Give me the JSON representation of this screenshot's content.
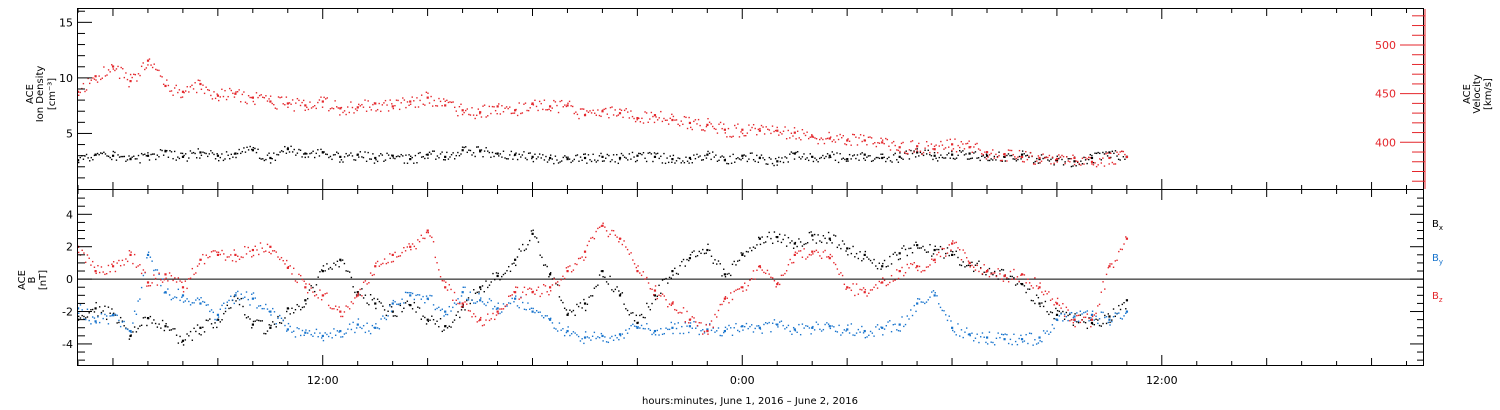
{
  "chart_data": [
    {
      "panel": "density-velocity",
      "type": "scatter",
      "x_range_hours": [
        5.0,
        43.5
      ],
      "ylim": [
        0,
        16.2
      ],
      "ylabel": [
        "ACE",
        "Ion Density",
        "[cm⁻³]"
      ],
      "yticks": [
        5,
        10,
        15
      ],
      "right_ylim": [
        352,
        537
      ],
      "right_ylabel": [
        "ACE",
        "Velocity",
        "[km/s]"
      ],
      "right_yticks": [
        400,
        450,
        500
      ],
      "right_axis_color": "#e4262b",
      "series": [
        {
          "axis": "left",
          "color": "#000000",
          "x": [
            5.0,
            5.5,
            6.0,
            6.5,
            7.0,
            7.5,
            8.0,
            8.5,
            9.0,
            9.5,
            10.0,
            10.5,
            11.0,
            11.5,
            12.0,
            12.5,
            13.0,
            13.5,
            14.0,
            14.5,
            15.0,
            15.5,
            16.0,
            16.5,
            17.0,
            17.5,
            18.0,
            18.5,
            19.0,
            19.5,
            20.0,
            20.5,
            21.0,
            21.5,
            22.0,
            22.5,
            23.0,
            23.5,
            24.0,
            24.5,
            25.0,
            25.5,
            26.0,
            26.5,
            27.0,
            27.5,
            28.0,
            28.5,
            29.0,
            29.5,
            30.0,
            30.5,
            31.0,
            31.5,
            32.0,
            32.5,
            33.0,
            33.5,
            34.0,
            34.5,
            35.0
          ],
          "y": [
            2.6,
            3.1,
            3.0,
            2.7,
            3.0,
            3.4,
            2.9,
            3.3,
            3.0,
            3.2,
            3.5,
            2.8,
            3.6,
            3.2,
            3.3,
            2.9,
            3.1,
            2.8,
            3.0,
            2.7,
            3.1,
            2.9,
            3.5,
            3.4,
            3.2,
            3.1,
            2.9,
            2.8,
            2.7,
            2.8,
            2.9,
            2.8,
            3.0,
            2.9,
            2.7,
            2.8,
            3.1,
            2.6,
            3.0,
            2.8,
            2.5,
            3.2,
            2.9,
            3.0,
            2.7,
            3.1,
            2.8,
            2.9,
            3.3,
            3.0,
            3.1,
            3.2,
            3.0,
            2.9,
            3.1,
            2.7,
            2.6,
            2.5,
            2.8,
            3.3,
            2.9
          ]
        },
        {
          "axis": "right",
          "color": "#e4262b",
          "x": [
            5.0,
            5.5,
            6.0,
            6.5,
            7.0,
            7.5,
            8.0,
            8.5,
            9.0,
            9.5,
            10.0,
            10.5,
            11.0,
            11.5,
            12.0,
            12.5,
            13.0,
            13.5,
            14.0,
            14.5,
            15.0,
            15.5,
            16.0,
            16.5,
            17.0,
            17.5,
            18.0,
            18.5,
            19.0,
            19.5,
            20.0,
            20.5,
            21.0,
            21.5,
            22.0,
            22.5,
            23.0,
            23.5,
            24.0,
            24.5,
            25.0,
            25.5,
            26.0,
            26.5,
            27.0,
            27.5,
            28.0,
            28.5,
            29.0,
            29.5,
            30.0,
            30.5,
            31.0,
            31.5,
            32.0,
            32.5,
            33.0,
            33.5,
            34.0,
            34.5,
            35.0
          ],
          "y": [
            452,
            468,
            478,
            463,
            484,
            458,
            452,
            460,
            448,
            450,
            446,
            442,
            440,
            438,
            442,
            435,
            436,
            440,
            437,
            442,
            446,
            438,
            433,
            431,
            437,
            433,
            440,
            437,
            438,
            428,
            432,
            430,
            425,
            428,
            423,
            420,
            418,
            413,
            413,
            412,
            412,
            410,
            406,
            404,
            402,
            402,
            400,
            395,
            396,
            393,
            398,
            395,
            390,
            388,
            385,
            384,
            383,
            384,
            380,
            384,
            385
          ]
        }
      ]
    },
    {
      "panel": "magnetic-field",
      "type": "scatter",
      "x_range_hours": [
        5.0,
        43.5
      ],
      "ylim": [
        -5.3,
        5.5
      ],
      "ylabel": [
        "ACE",
        "B",
        "[nT]"
      ],
      "yticks": [
        -4,
        -2,
        0,
        2,
        4
      ],
      "zero_line": true,
      "series": [
        {
          "name": "Bx",
          "color": "#000000",
          "x": [
            5.0,
            5.5,
            6.0,
            6.5,
            7.0,
            7.5,
            8.0,
            8.5,
            9.0,
            9.5,
            10.0,
            10.5,
            11.0,
            11.5,
            12.0,
            12.5,
            13.0,
            13.5,
            14.0,
            14.5,
            15.0,
            15.5,
            16.0,
            16.5,
            17.0,
            17.5,
            18.0,
            18.5,
            19.0,
            19.5,
            20.0,
            20.5,
            21.0,
            21.5,
            22.0,
            22.5,
            23.0,
            23.5,
            24.0,
            24.5,
            25.0,
            25.5,
            26.0,
            26.5,
            27.0,
            27.5,
            28.0,
            28.5,
            29.0,
            29.5,
            30.0,
            30.5,
            31.0,
            31.5,
            32.0,
            32.5,
            33.0,
            33.5,
            34.0,
            34.5,
            35.0
          ],
          "y": [
            -2.5,
            -1.8,
            -2.2,
            -3.5,
            -2.4,
            -2.9,
            -3.8,
            -3.0,
            -2.5,
            -1.0,
            -2.8,
            -3.0,
            -1.8,
            -1.3,
            0.5,
            1.2,
            -0.8,
            -1.5,
            -2.0,
            -1.6,
            -2.5,
            -2.9,
            -1.7,
            -0.5,
            0.2,
            1.2,
            2.8,
            0.3,
            -2.2,
            -1.5,
            0.5,
            -1.0,
            -2.7,
            -1.0,
            0.5,
            1.3,
            1.8,
            0.3,
            1.5,
            2.5,
            2.6,
            2.2,
            2.7,
            2.5,
            1.9,
            1.5,
            0.8,
            1.6,
            2.1,
            1.8,
            1.5,
            1.0,
            0.5,
            0.2,
            -0.3,
            -1.5,
            -2.2,
            -2.5,
            -2.7,
            -2.3,
            -1.3
          ]
        },
        {
          "name": "By",
          "color": "#1874cd",
          "x": [
            5.0,
            5.5,
            6.0,
            6.5,
            7.0,
            7.5,
            8.0,
            8.5,
            9.0,
            9.5,
            10.0,
            10.5,
            11.0,
            11.5,
            12.0,
            12.5,
            13.0,
            13.5,
            14.0,
            14.5,
            15.0,
            15.5,
            16.0,
            16.5,
            17.0,
            17.5,
            18.0,
            18.5,
            19.0,
            19.5,
            20.0,
            20.5,
            21.0,
            21.5,
            22.0,
            22.5,
            23.0,
            23.5,
            24.0,
            24.5,
            25.0,
            25.5,
            26.0,
            26.5,
            27.0,
            27.5,
            28.0,
            28.5,
            29.0,
            29.5,
            30.0,
            30.5,
            31.0,
            31.5,
            32.0,
            32.5,
            33.0,
            33.5,
            34.0,
            34.5,
            35.0
          ],
          "y": [
            -1.8,
            -2.6,
            -2.2,
            -3.2,
            1.5,
            -0.8,
            -1.0,
            -1.5,
            -2.2,
            -1.0,
            -1.2,
            -2.0,
            -3.1,
            -3.3,
            -3.5,
            -3.2,
            -2.8,
            -3.0,
            -1.5,
            -1.0,
            -1.2,
            -2.0,
            -0.8,
            -1.3,
            -1.8,
            -1.2,
            -2.0,
            -2.5,
            -3.2,
            -3.6,
            -3.5,
            -3.4,
            -3.0,
            -3.2,
            -3.0,
            -2.9,
            -3.1,
            -3.2,
            -2.9,
            -3.0,
            -2.8,
            -3.1,
            -3.0,
            -2.9,
            -3.1,
            -3.2,
            -3.0,
            -2.8,
            -1.5,
            -1.0,
            -3.0,
            -3.4,
            -3.6,
            -3.7,
            -3.7,
            -3.6,
            -2.5,
            -2.3,
            -2.2,
            -2.5,
            -2.0
          ]
        },
        {
          "name": "Bz",
          "color": "#e4262b",
          "x": [
            5.0,
            5.5,
            6.0,
            6.5,
            7.0,
            7.5,
            8.0,
            8.5,
            9.0,
            9.5,
            10.0,
            10.5,
            11.0,
            11.5,
            12.0,
            12.5,
            13.0,
            13.5,
            14.0,
            14.5,
            15.0,
            15.5,
            16.0,
            16.5,
            17.0,
            17.5,
            18.0,
            18.5,
            19.0,
            19.5,
            20.0,
            20.5,
            21.0,
            21.5,
            22.0,
            22.5,
            23.0,
            23.5,
            24.0,
            24.5,
            25.0,
            25.5,
            26.0,
            26.5,
            27.0,
            27.5,
            28.0,
            28.5,
            29.0,
            29.5,
            30.0,
            30.5,
            31.0,
            31.5,
            32.0,
            32.5,
            33.0,
            33.5,
            34.0,
            34.5,
            35.0
          ],
          "y": [
            2.0,
            0.5,
            0.8,
            1.5,
            -0.2,
            0.3,
            -0.5,
            1.2,
            1.5,
            1.5,
            1.8,
            2.0,
            0.7,
            -0.5,
            -1.0,
            -2.0,
            -1.0,
            0.8,
            1.5,
            2.0,
            3.0,
            -0.5,
            -1.5,
            -2.5,
            -2.0,
            -0.8,
            -0.8,
            -0.5,
            0.5,
            1.7,
            3.3,
            2.5,
            0.5,
            -0.7,
            -1.5,
            -2.5,
            -3.2,
            -1.2,
            -0.5,
            0.8,
            -0.3,
            1.5,
            1.7,
            1.3,
            -0.5,
            -0.8,
            -0.2,
            0.5,
            0.8,
            1.2,
            2.2,
            1.0,
            0.5,
            0.2,
            0.3,
            -0.5,
            -1.5,
            -2.5,
            -2.5,
            0.8,
            2.5
          ]
        }
      ],
      "legend": [
        "B",
        "B",
        "B"
      ],
      "legend_subscripts": [
        "x",
        "y",
        "z"
      ],
      "legend_colors": [
        "#000000",
        "#1874cd",
        "#e4262b"
      ],
      "legend_placement": "right"
    }
  ],
  "x_axis": {
    "start_hours": 5.0,
    "end_hours": 43.5,
    "tick_labels": [
      "12:00",
      "0:00",
      "12:00"
    ],
    "tick_hours": [
      12,
      24,
      36
    ],
    "label": "hours:minutes, June  1, 2016 – June  2, 2016"
  }
}
